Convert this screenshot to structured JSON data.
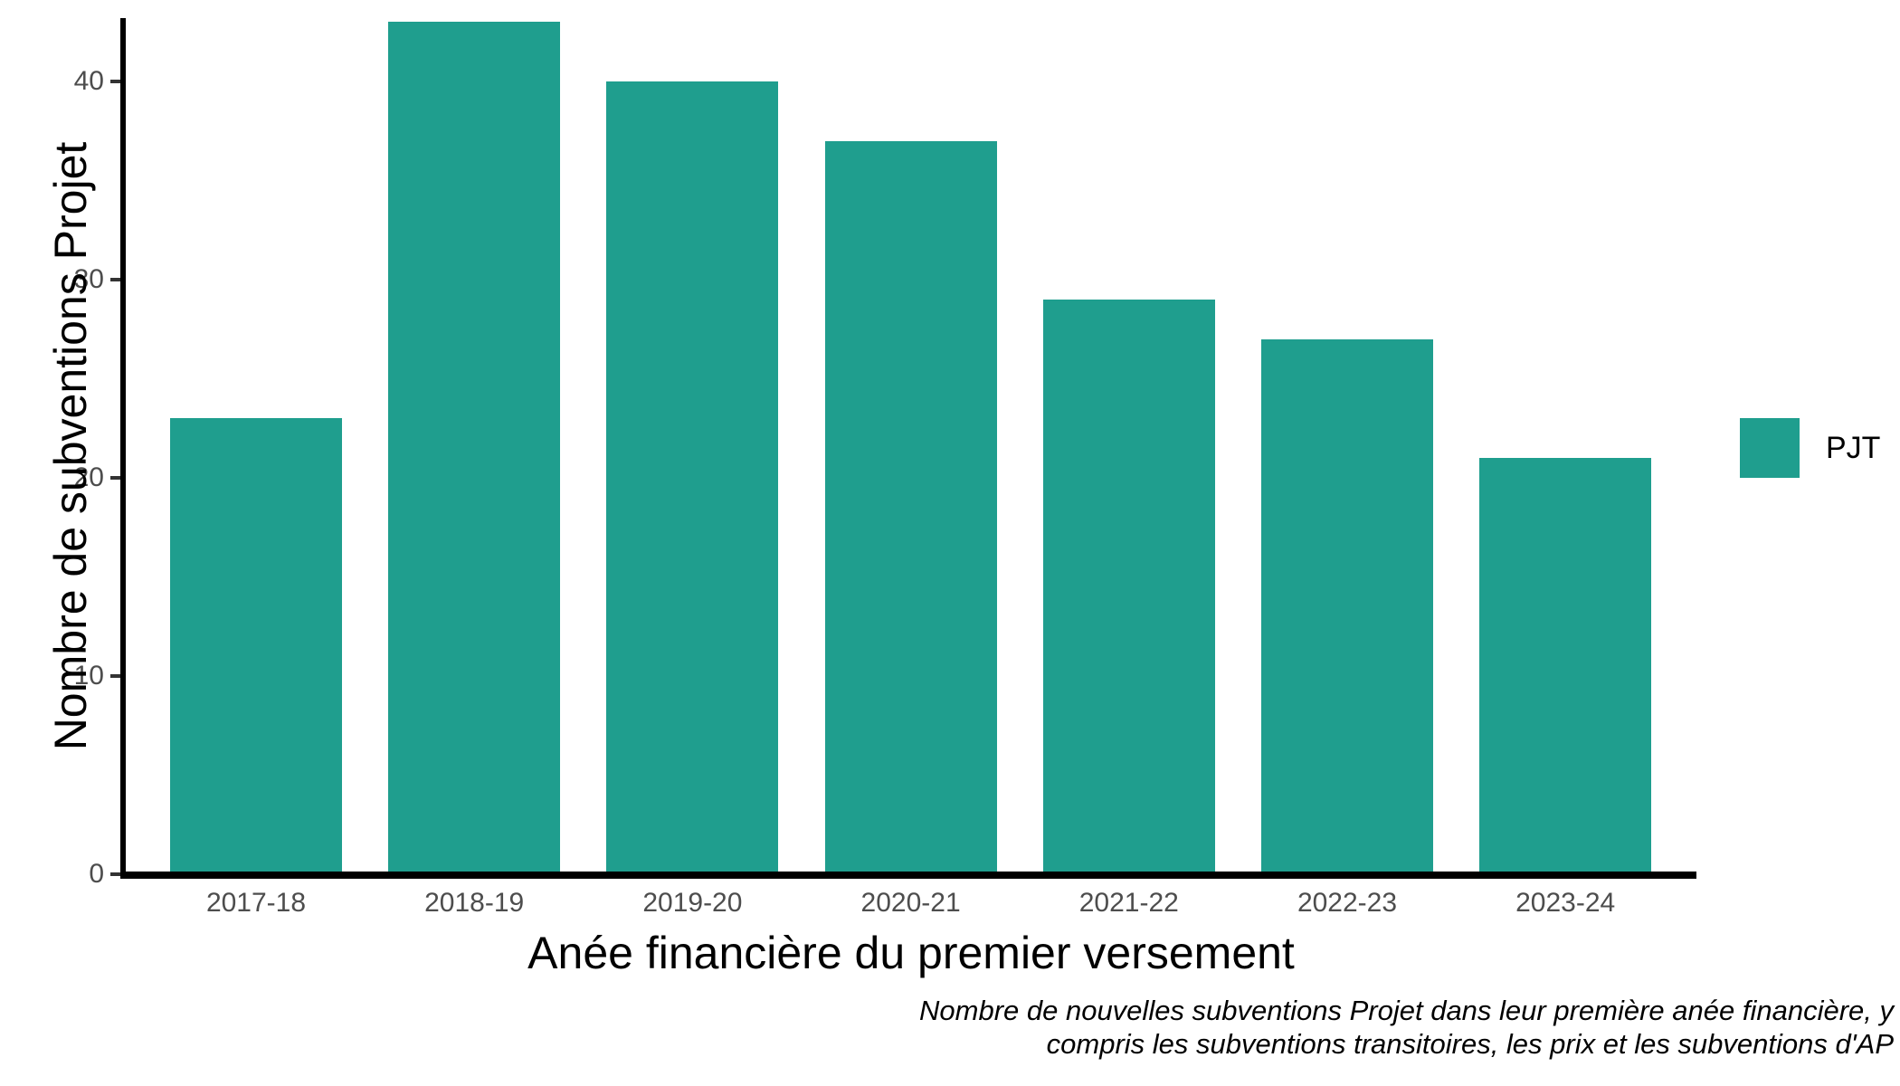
{
  "chart_data": {
    "type": "bar",
    "categories": [
      "2017-18",
      "2018-19",
      "2019-20",
      "2020-21",
      "2021-22",
      "2022-23",
      "2023-24"
    ],
    "series": [
      {
        "name": "PJT",
        "values": [
          23,
          43,
          40,
          37,
          29,
          27,
          21
        ]
      }
    ],
    "title": "",
    "xlabel": "Anée financière du premier versement",
    "ylabel": "Nombre de subventions Projet",
    "yticks": [
      0,
      10,
      20,
      30,
      40
    ],
    "ylim": [
      0,
      43.2
    ],
    "grid": false,
    "legend_position": "right"
  },
  "legend": {
    "label": "PJT",
    "swatch_color": "#1F9E8E"
  },
  "caption": {
    "line1": "Nombre de nouvelles subventions Projet dans leur première anée financière, y",
    "line2": "compris les subventions transitoires, les prix et les subventions d'AP"
  },
  "colors": {
    "bar": "#1F9E8E",
    "axis_text": "#4D4D4D",
    "axis_line": "#000000",
    "tick_mark": "#333333",
    "background": "#FFFFFF"
  }
}
